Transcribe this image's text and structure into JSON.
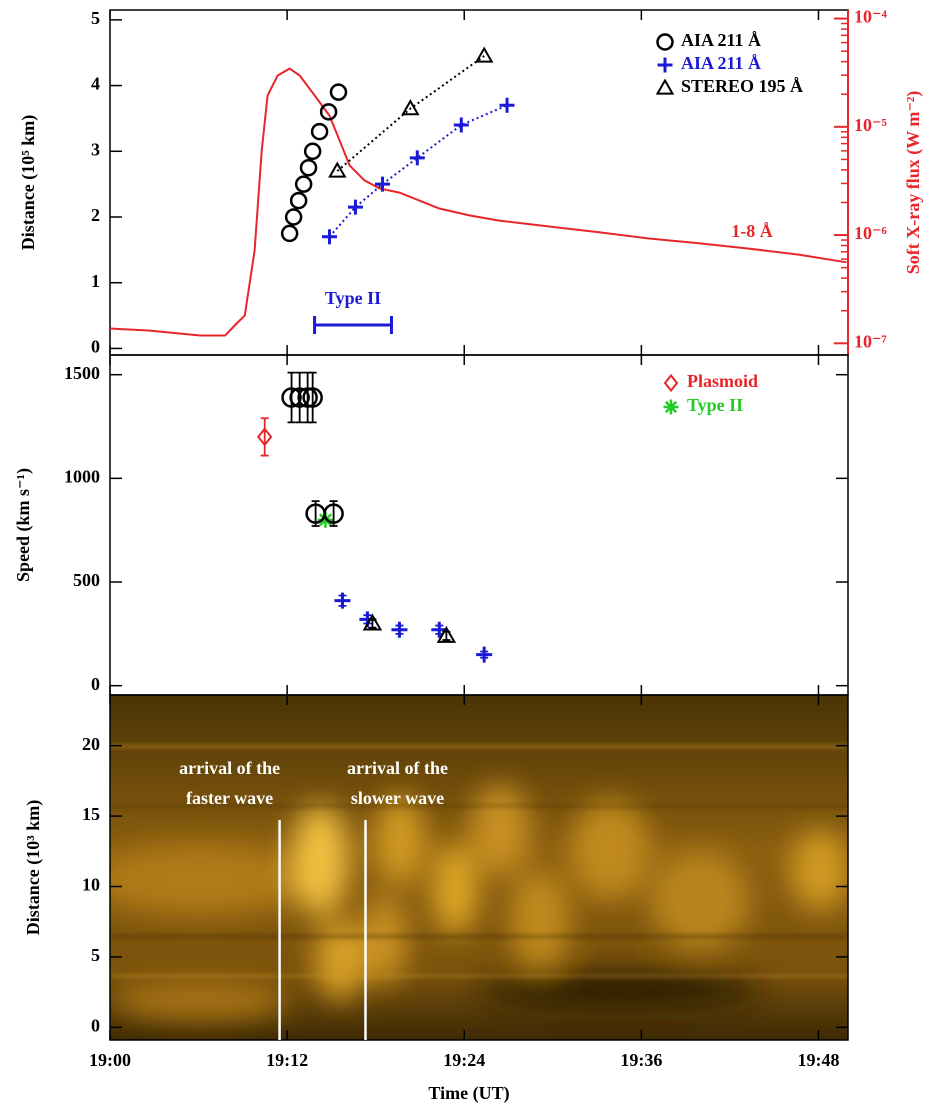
{
  "chart_data": [
    {
      "type": "scatter",
      "ylabel": "Distance (10⁵ km)",
      "ylim": [
        -0.1,
        5.15
      ],
      "yticks": [
        0,
        1,
        2,
        3,
        4,
        5
      ],
      "y2label": "Soft X-ray flux (W m⁻²)",
      "y2lim": [
        7.8e-08,
        0.00012
      ],
      "y2log": true,
      "y2color": "#e8262a",
      "y2ticks": [
        {
          "value": 1e-07,
          "label": "10⁻⁷"
        },
        {
          "value": 1e-06,
          "label": "10⁻⁶"
        },
        {
          "value": 1e-05,
          "label": "10⁻⁵"
        },
        {
          "value": 0.0001,
          "label": "10⁻⁴"
        }
      ],
      "xlim": [
        0,
        50
      ],
      "series": [
        {
          "name": "1-8 Å",
          "color": "#e8262a",
          "marker": "line",
          "axis": "y2",
          "legend": false,
          "x": [
            0,
            2.7,
            6.1,
            7.8,
            8.45,
            9.13,
            9.8,
            10.28,
            10.68,
            11.36,
            12.17,
            12.85,
            13.86,
            14.87,
            15.55,
            16.23,
            17.24,
            18.26,
            19.61,
            20.96,
            22.31,
            24.34,
            26.37,
            29.75,
            33.13,
            36.51,
            39.89,
            43.27,
            46.65,
            49.9
          ],
          "values": [
            1.37e-07,
            1.31e-07,
            1.18e-07,
            1.18e-07,
            1.46e-07,
            1.81e-07,
            7.2e-07,
            6e-06,
            1.95e-05,
            2.98e-05,
            3.45e-05,
            2.98e-05,
            1.95e-05,
            1.27e-05,
            7.5e-06,
            4.4e-06,
            3.2e-06,
            2.7e-06,
            2.47e-06,
            2.08e-06,
            1.76e-06,
            1.52e-06,
            1.36e-06,
            1.2e-06,
            1.06e-06,
            9.3e-07,
            8.4e-07,
            7.5e-07,
            6.6e-07,
            5.6e-07
          ]
        },
        {
          "name": "AIA 211 Å",
          "color": "#000000",
          "marker": "circle",
          "x": [
            12.17,
            12.44,
            12.78,
            13.12,
            13.45,
            13.73,
            14.2,
            14.81,
            15.48
          ],
          "values": [
            1.75,
            2.0,
            2.25,
            2.5,
            2.75,
            3.0,
            3.3,
            3.6,
            3.9
          ]
        },
        {
          "name": "AIA 211 Å",
          "color": "#1a1ad6",
          "marker": "plus",
          "connect": "dotted",
          "x": [
            14.87,
            16.63,
            18.46,
            20.82,
            23.8,
            26.9
          ],
          "values": [
            1.7,
            2.15,
            2.5,
            2.9,
            3.4,
            3.7
          ]
        },
        {
          "name": "STEREO 195 Å",
          "color": "#000000",
          "marker": "triangle",
          "connect": "dotted",
          "x": [
            15.4,
            20.35,
            25.35
          ],
          "values": [
            2.7,
            3.65,
            4.45
          ]
        }
      ],
      "annotation": {
        "text": "Type II",
        "color": "#1a1ad6",
        "start": 13.86,
        "end": 19.07
      }
    },
    {
      "type": "scatter",
      "ylabel": "Speed (km s⁻¹)",
      "ylim": [
        -45,
        1595
      ],
      "yticks": [
        0,
        500,
        1000,
        1500
      ],
      "xlim": [
        0,
        50
      ],
      "series": [
        {
          "name": "Plasmoid",
          "color": "#e8262a",
          "marker": "diamond",
          "x": [
            10.48
          ],
          "values": [
            1200
          ],
          "errors": [
            90
          ]
        },
        {
          "name": "Type II",
          "color": "#22cc22",
          "marker": "asterisk",
          "x": [
            14.6
          ],
          "values": [
            800
          ]
        },
        {
          "color": "#000000",
          "marker": "circle",
          "x": [
            12.3,
            12.85,
            13.39,
            13.73,
            13.93,
            15.15
          ],
          "values": [
            1390,
            1390,
            1390,
            1390,
            830,
            830
          ],
          "errors": [
            120,
            120,
            120,
            120,
            60,
            60
          ]
        },
        {
          "color": "#1a1ad6",
          "marker": "plus",
          "x": [
            15.75,
            17.44,
            19.61,
            22.31,
            25.35
          ],
          "values": [
            410,
            320,
            270,
            270,
            150
          ],
          "errors": [
            25,
            20,
            20,
            20,
            15
          ]
        },
        {
          "color": "#000000",
          "marker": "triangle",
          "x": [
            17.78,
            22.79
          ],
          "values": [
            300,
            240
          ],
          "errors": [
            20,
            20
          ]
        }
      ]
    },
    {
      "type": "image",
      "ylabel": "Distance (10³ km)",
      "xlabel": "Time (UT)",
      "ylim": [
        -0.9,
        23.6
      ],
      "yticks": [
        0,
        5,
        10,
        15,
        20
      ],
      "xlim": [
        0,
        50
      ],
      "xticks": [
        {
          "value": 0,
          "label": "19:00"
        },
        {
          "value": 12,
          "label": "19:12"
        },
        {
          "value": 24,
          "label": "19:24"
        },
        {
          "value": 36,
          "label": "19:36"
        },
        {
          "value": 48,
          "label": "19:48"
        }
      ],
      "markers": [
        {
          "x": 11.49,
          "text": [
            "arrival of the",
            "faster wave"
          ]
        },
        {
          "x": 17.31,
          "text": [
            "arrival of the",
            "slower wave"
          ]
        }
      ]
    }
  ]
}
